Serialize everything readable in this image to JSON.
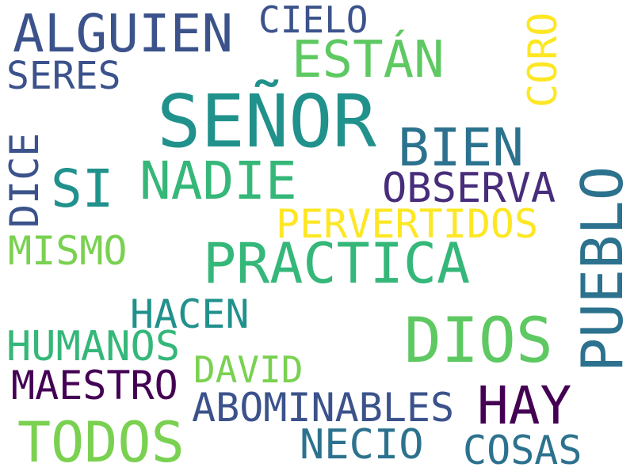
{
  "words": [
    {
      "text": "SEÑOR",
      "color": "#21918c"
    },
    {
      "text": "ALGUIEN",
      "color": "#3b528b"
    },
    {
      "text": "CIELO",
      "color": "#3b528b"
    },
    {
      "text": "ESTÁN",
      "color": "#5ec962"
    },
    {
      "text": "CORO",
      "color": "#fde725"
    },
    {
      "text": "SERES",
      "color": "#3b528b"
    },
    {
      "text": "BIEN",
      "color": "#2c728e"
    },
    {
      "text": "SI",
      "color": "#21918c"
    },
    {
      "text": "NADIE",
      "color": "#35b779"
    },
    {
      "text": "DICE",
      "color": "#3b528b"
    },
    {
      "text": "OBSERVA",
      "color": "#472d7b"
    },
    {
      "text": "PUEBLO",
      "color": "#2c728e"
    },
    {
      "text": "PERVERTIDOS",
      "color": "#fde725"
    },
    {
      "text": "MISMO",
      "color": "#7ad151"
    },
    {
      "text": "PRACTICA",
      "color": "#35b779"
    },
    {
      "text": "HACEN",
      "color": "#21918c"
    },
    {
      "text": "DIOS",
      "color": "#5ec962"
    },
    {
      "text": "HUMANOS",
      "color": "#35b779"
    },
    {
      "text": "DAVID",
      "color": "#7ad151"
    },
    {
      "text": "MAESTRO",
      "color": "#440154"
    },
    {
      "text": "HAY",
      "color": "#440154"
    },
    {
      "text": "ABOMINABLES",
      "color": "#3b528b"
    },
    {
      "text": "TODOS",
      "color": "#7ad151"
    },
    {
      "text": "NECIO",
      "color": "#2c728e"
    },
    {
      "text": "COSAS",
      "color": "#2c728e"
    }
  ]
}
